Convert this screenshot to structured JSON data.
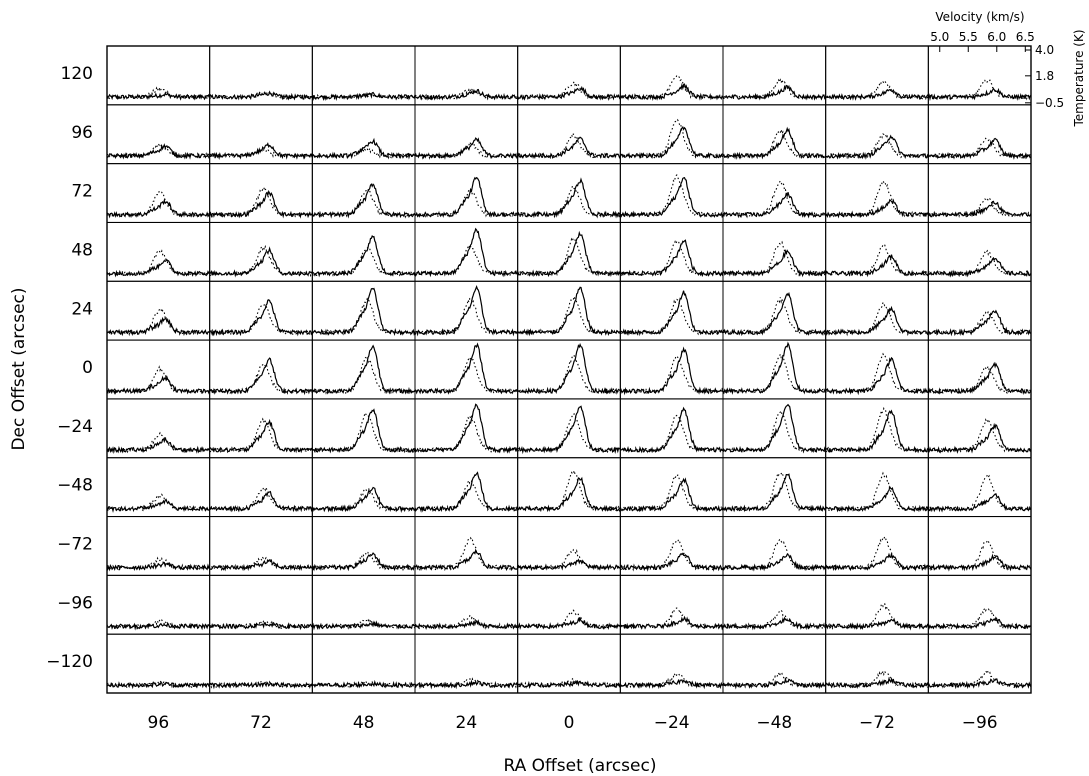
{
  "chart_data": {
    "type": "line",
    "description_axes": "grid of spectra",
    "xlabel": "RA Offset (arcsec)",
    "ylabel": "Dec Offset (arcsec)",
    "ra_offsets": [
      "96",
      "72",
      "48",
      "24",
      "0",
      "−24",
      "−48",
      "−72",
      "−96"
    ],
    "dec_offsets": [
      "120",
      "96",
      "72",
      "48",
      "24",
      "0",
      "−24",
      "−48",
      "−72",
      "−96",
      "−120"
    ],
    "inset_axes": {
      "velocity_label": "Velocity (km/s)",
      "velocity_ticks": [
        "5.0",
        "5.5",
        "6.0",
        "6.5"
      ],
      "velocity_range": [
        4.8,
        6.6
      ],
      "temperature_label": "Temperature (K)",
      "temperature_ticks": [
        "4.0",
        "1.8",
        "−0.5"
      ],
      "temperature_range": [
        -0.5,
        4.0
      ]
    },
    "series": [
      {
        "style": "solid",
        "peak_temperature_K": [
          [
            0.2,
            0.3,
            0.2,
            0.5,
            0.7,
            0.9,
            0.8,
            0.6,
            0.6
          ],
          [
            0.8,
            0.9,
            1.2,
            1.3,
            1.4,
            2.3,
            2.1,
            1.6,
            1.3
          ],
          [
            1.1,
            1.8,
            2.5,
            3.0,
            2.8,
            3.0,
            1.7,
            1.1,
            1.0
          ],
          [
            1.1,
            1.9,
            3.0,
            3.6,
            3.3,
            2.7,
            1.8,
            1.4,
            1.3
          ],
          [
            1.1,
            2.6,
            3.6,
            3.6,
            3.6,
            3.3,
            3.2,
            1.9,
            1.8
          ],
          [
            1.1,
            2.6,
            3.7,
            3.8,
            3.8,
            3.4,
            3.8,
            2.6,
            2.2
          ],
          [
            0.8,
            2.3,
            3.3,
            3.7,
            3.6,
            3.3,
            3.8,
            3.2,
            2.0
          ],
          [
            0.6,
            1.3,
            1.7,
            2.9,
            2.5,
            2.4,
            2.8,
            1.7,
            1.2
          ],
          [
            0.3,
            0.5,
            1.1,
            1.3,
            0.5,
            1.1,
            1.0,
            1.0,
            0.9
          ],
          [
            0.1,
            0.2,
            0.2,
            0.3,
            0.5,
            0.6,
            0.6,
            0.5,
            0.6
          ],
          [
            0.1,
            0.1,
            0.1,
            0.2,
            0.2,
            0.4,
            0.4,
            0.4,
            0.4
          ]
        ]
      },
      {
        "style": "dotted",
        "peak_temperature_K": [
          [
            0.7,
            0.4,
            0.2,
            0.6,
            1.2,
            1.7,
            1.4,
            1.3,
            1.4
          ],
          [
            0.9,
            0.5,
            0.6,
            1.0,
            1.7,
            3.0,
            2.1,
            1.8,
            1.5
          ],
          [
            1.9,
            2.2,
            2.1,
            2.0,
            2.3,
            3.2,
            2.8,
            2.8,
            1.3
          ],
          [
            1.9,
            2.2,
            2.2,
            2.3,
            2.9,
            2.7,
            2.6,
            2.3,
            1.8
          ],
          [
            1.9,
            2.4,
            2.7,
            2.8,
            2.9,
            2.7,
            2.8,
            2.4,
            1.6
          ],
          [
            1.9,
            2.3,
            2.8,
            2.8,
            2.9,
            2.9,
            3.0,
            3.0,
            2.0
          ],
          [
            1.4,
            2.5,
            3.1,
            2.8,
            3.0,
            2.9,
            3.2,
            3.4,
            2.5
          ],
          [
            1.1,
            1.8,
            1.6,
            2.3,
            3.1,
            2.8,
            3.1,
            2.9,
            2.8
          ],
          [
            0.7,
            0.8,
            1.2,
            2.4,
            1.4,
            2.3,
            2.3,
            2.5,
            2.2
          ],
          [
            0.4,
            0.4,
            0.5,
            0.8,
            1.2,
            1.4,
            1.2,
            1.8,
            1.5
          ],
          [
            0.3,
            0.2,
            0.2,
            0.4,
            0.4,
            0.9,
            0.9,
            1.1,
            1.1
          ]
        ]
      }
    ]
  }
}
